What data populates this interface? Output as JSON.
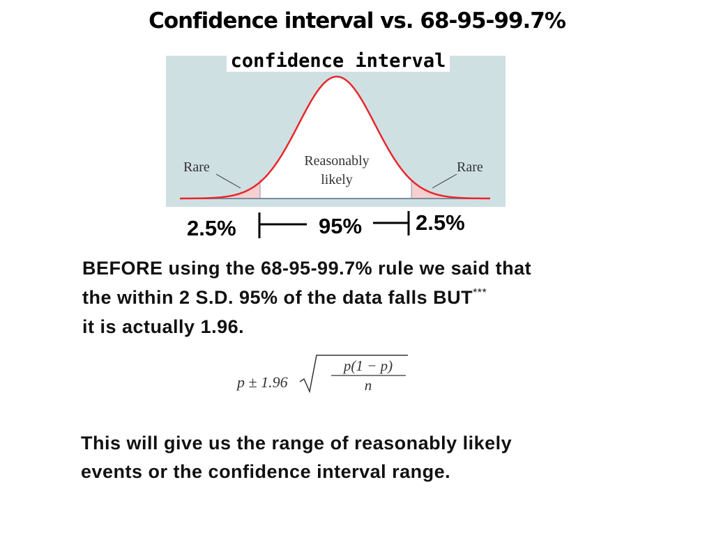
{
  "title": "Confidence interval vs. 68-95-99.7%",
  "figure": {
    "label": "confidence interval",
    "left_label": "Rare",
    "center_label": [
      "Reasonably",
      "likely"
    ],
    "right_label": "Rare",
    "left_pct": "2.5%",
    "center_pct": "95%",
    "right_pct": "2.5%"
  },
  "paragraph_1": {
    "lines": [
      "BEFORE using the 68-95-99.7% rule we said that",
      "the within 2 S.D. 95% of the data falls BUT",
      "it is actually 1.96."
    ],
    "superscript": "***"
  },
  "formula": {
    "left": "p ± 1.96",
    "numerator": "p(1 − p)",
    "denominator": "n"
  },
  "paragraph_2": {
    "lines": [
      "This will give us the range of reasonably likely",
      "events or the confidence interval range."
    ]
  }
}
